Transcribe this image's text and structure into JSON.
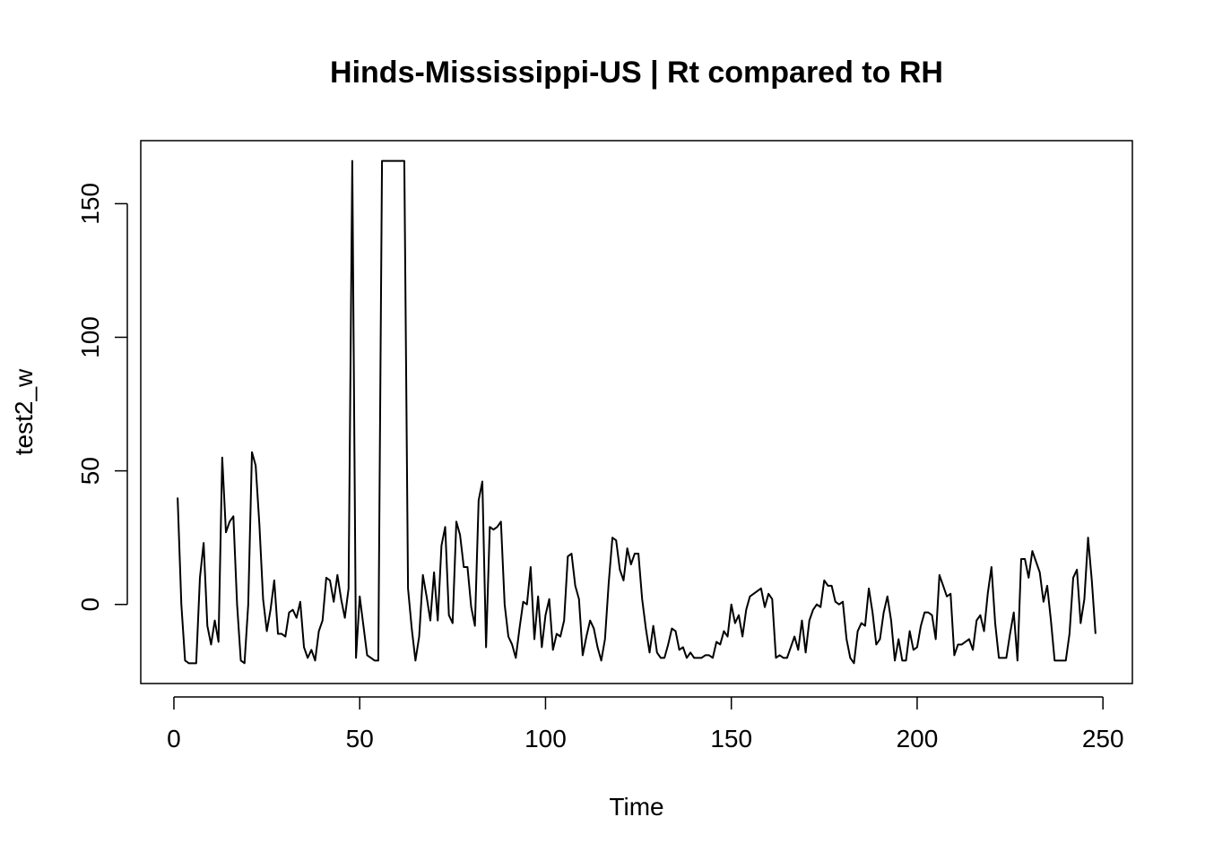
{
  "chart_data": {
    "type": "line",
    "title": "Hinds-Mississippi-US | Rt compared to RH",
    "xlabel": "Time",
    "ylabel": "test2_w",
    "xlim": [
      -8.92,
      257.92
    ],
    "ylim": [
      -29.6,
      173.6
    ],
    "x_ticks": [
      0,
      50,
      100,
      150,
      200,
      250
    ],
    "y_ticks": [
      0,
      50,
      100,
      150
    ],
    "grid": false,
    "legend": "none",
    "line_color": "#000000",
    "x": [
      1,
      2,
      3,
      4,
      5,
      6,
      7,
      8,
      9,
      10,
      11,
      12,
      13,
      14,
      15,
      16,
      17,
      18,
      19,
      20,
      21,
      22,
      23,
      24,
      25,
      26,
      27,
      28,
      29,
      30,
      31,
      32,
      33,
      34,
      35,
      36,
      37,
      38,
      39,
      40,
      41,
      42,
      43,
      44,
      45,
      46,
      47,
      48,
      49,
      50,
      51,
      52,
      53,
      54,
      55,
      56,
      57,
      58,
      59,
      60,
      61,
      62,
      63,
      64,
      65,
      66,
      67,
      68,
      69,
      70,
      71,
      72,
      73,
      74,
      75,
      76,
      77,
      78,
      79,
      80,
      81,
      82,
      83,
      84,
      85,
      86,
      87,
      88,
      89,
      90,
      91,
      92,
      93,
      94,
      95,
      96,
      97,
      98,
      99,
      100,
      101,
      102,
      103,
      104,
      105,
      106,
      107,
      108,
      109,
      110,
      111,
      112,
      113,
      114,
      115,
      116,
      117,
      118,
      119,
      120,
      121,
      122,
      123,
      124,
      125,
      126,
      127,
      128,
      129,
      130,
      131,
      132,
      133,
      134,
      135,
      136,
      137,
      138,
      139,
      140,
      141,
      142,
      143,
      144,
      145,
      146,
      147,
      148,
      149,
      150,
      151,
      152,
      153,
      154,
      155,
      156,
      157,
      158,
      159,
      160,
      161,
      162,
      163,
      164,
      165,
      166,
      167,
      168,
      169,
      170,
      171,
      172,
      173,
      174,
      175,
      176,
      177,
      178,
      179,
      180,
      181,
      182,
      183,
      184,
      185,
      186,
      187,
      188,
      189,
      190,
      191,
      192,
      193,
      194,
      195,
      196,
      197,
      198,
      199,
      200,
      201,
      202,
      203,
      204,
      205,
      206,
      207,
      208,
      209,
      210,
      211,
      212,
      213,
      214,
      215,
      216,
      217,
      218,
      219,
      220,
      221,
      222,
      223,
      224,
      225,
      226,
      227,
      228,
      229,
      230,
      231,
      232,
      233,
      234,
      235,
      236,
      237,
      238,
      239,
      240,
      241,
      242,
      243,
      244,
      245,
      246,
      247,
      248
    ],
    "values": [
      40,
      0,
      -21,
      -22,
      -22,
      -22,
      10,
      23,
      -8,
      -15,
      -6,
      -14,
      55,
      27,
      31,
      33,
      0,
      -21,
      -22,
      0,
      57,
      52,
      30,
      2,
      -10,
      -2,
      9,
      -11,
      -11,
      -12,
      -3,
      -2,
      -5,
      1,
      -16,
      -20,
      -17,
      -21,
      -10,
      -6,
      10,
      9,
      1,
      11,
      2,
      -5,
      6,
      166,
      -20,
      3,
      -8,
      -19,
      -20,
      -21,
      -21,
      166,
      166,
      166,
      166,
      166,
      166,
      166,
      6,
      -9,
      -21,
      -12,
      11,
      3,
      -6,
      12,
      -6,
      22,
      29,
      -4,
      -7,
      31,
      26,
      14,
      14,
      -1,
      -8,
      39,
      46,
      -16,
      29,
      28,
      29,
      31,
      0,
      -12,
      -15,
      -20,
      -9,
      1,
      0,
      14,
      -13,
      3,
      -16,
      -4,
      2,
      -17,
      -11,
      -12,
      -6,
      18,
      19,
      7,
      2,
      -19,
      -12,
      -6,
      -9,
      -16,
      -21,
      -13,
      8,
      25,
      24,
      13,
      9,
      21,
      15,
      19,
      19,
      2,
      -9,
      -18,
      -8,
      -18,
      -20,
      -20,
      -15,
      -9,
      -10,
      -17,
      -16,
      -20,
      -18,
      -20,
      -20,
      -20,
      -19,
      -19,
      -20,
      -14,
      -15,
      -10,
      -12,
      0,
      -7,
      -4,
      -12,
      -2,
      3,
      4,
      5,
      6,
      -1,
      4,
      2,
      -20,
      -19,
      -20,
      -20,
      -16,
      -12,
      -17,
      -6,
      -18,
      -6,
      -2,
      0,
      -1,
      9,
      7,
      7,
      1,
      0,
      1,
      -13,
      -20,
      -22,
      -10,
      -7,
      -8,
      6,
      -3,
      -15,
      -13,
      -3,
      3,
      -6,
      -21,
      -13,
      -21,
      -21,
      -10,
      -17,
      -16,
      -8,
      -3,
      -3,
      -4,
      -13,
      11,
      7,
      3,
      4,
      -19,
      -15,
      -15,
      -14,
      -13,
      -17,
      -6,
      -4,
      -10,
      4,
      14,
      -7,
      -20,
      -20,
      -20,
      -11,
      -3,
      -21,
      17,
      17,
      10,
      20,
      16,
      12,
      1,
      7,
      -6,
      -21,
      -21,
      -21,
      -21,
      -11,
      10,
      13,
      -7,
      2,
      25,
      9,
      -11
    ]
  }
}
